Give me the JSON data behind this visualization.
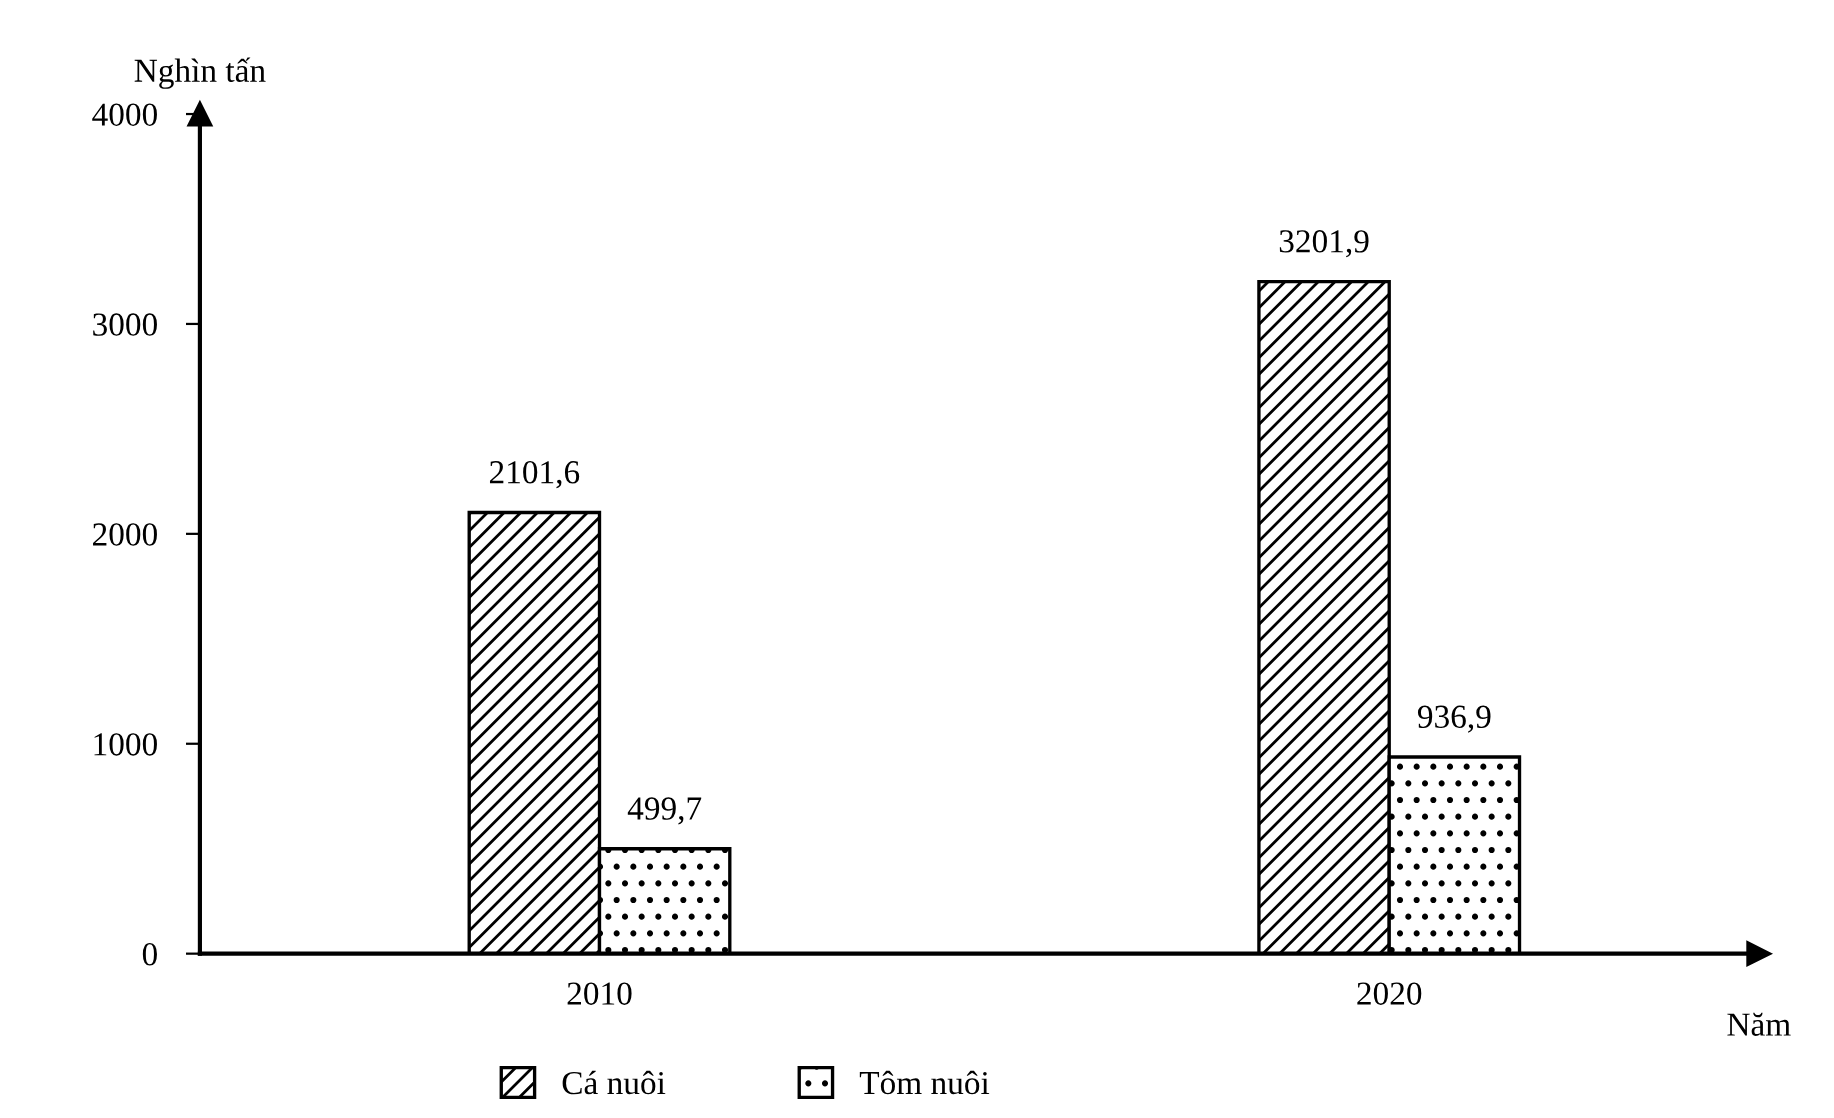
{
  "chart_data": {
    "type": "bar",
    "ylabel": "Nghìn tấn",
    "xlabel": "Năm",
    "categories": [
      "2010",
      "2020"
    ],
    "series": [
      {
        "name": "Cá nuôi",
        "color": "#000000",
        "values": [
          2101.6,
          3201.9
        ],
        "value_labels": [
          "2101,6",
          "3201,9"
        ]
      },
      {
        "name": "Tôm nuôi",
        "color": "#000000",
        "values": [
          499.7,
          936.9
        ],
        "value_labels": [
          "499,7",
          "936,9"
        ]
      }
    ],
    "ylim": [
      0,
      4000
    ],
    "yticks": [
      0,
      1000,
      2000,
      3000,
      4000
    ],
    "grid": false,
    "legend": "bottom"
  }
}
